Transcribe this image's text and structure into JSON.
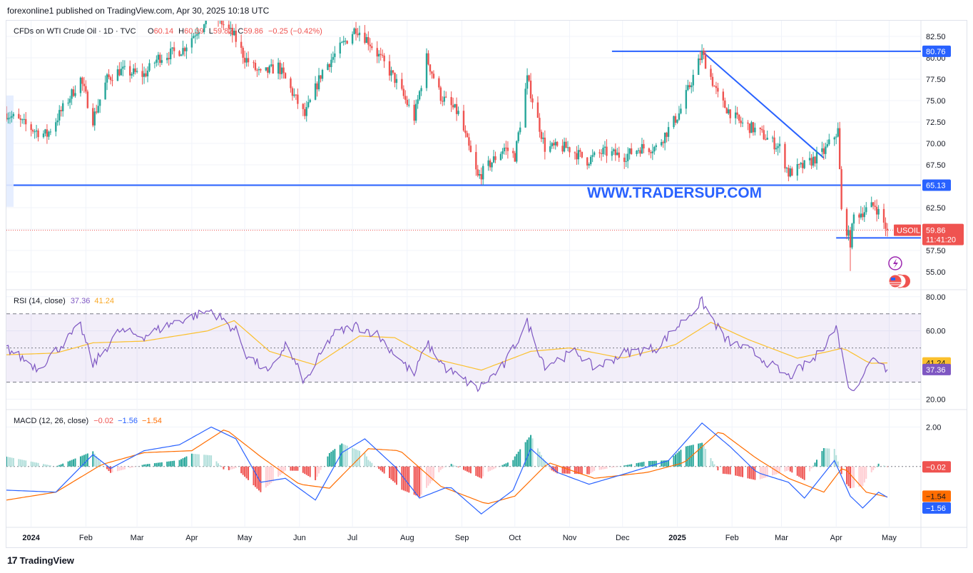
{
  "header": {
    "published": "forexonline1 published on TradingView.com, Apr 30, 2025 10:18 UTC"
  },
  "legend": {
    "symbol": "CFDs on WTI Crude Oil · 1D · TVC",
    "o_label": "O",
    "o_value": "60.14",
    "h_label": "H",
    "h_value": "60.39",
    "l_label": "L",
    "l_value": "59.82",
    "c_label": "C",
    "c_value": "59.86",
    "change": "−0.25 (−0.42%)"
  },
  "watermark": "WWW.TRADERSUP.COM",
  "footer": {
    "brand": "TradingView",
    "logo": "17"
  },
  "colors": {
    "up": "#26a69a",
    "down": "#ef5350",
    "level": "#2962ff",
    "rsi": "#7e57c2",
    "rsi_ma": "#fbc02d",
    "macd": "#2962ff",
    "signal": "#ff6d00"
  },
  "chart_data": [
    {
      "type": "candlestick",
      "title": "CFDs on WTI Crude Oil · 1D · TVC",
      "ylim": [
        53.5,
        83.5
      ],
      "yticks": [
        "82.50",
        "80.00",
        "77.50",
        "75.00",
        "72.50",
        "70.00",
        "67.50",
        "65.00",
        "62.50",
        "60.00",
        "57.50",
        "55.00"
      ],
      "xticks": [
        {
          "label": "2024",
          "date": "2024-01-01",
          "bold": true
        },
        {
          "label": "Feb",
          "date": "2024-02-01",
          "bold": false
        },
        {
          "label": "Mar",
          "date": "2024-03-01",
          "bold": false
        },
        {
          "label": "Apr",
          "date": "2024-04-01",
          "bold": false
        },
        {
          "label": "May",
          "date": "2024-05-01",
          "bold": false
        },
        {
          "label": "Jun",
          "date": "2024-06-01",
          "bold": false
        },
        {
          "label": "Jul",
          "date": "2024-07-01",
          "bold": false
        },
        {
          "label": "Aug",
          "date": "2024-08-01",
          "bold": false
        },
        {
          "label": "Sep",
          "date": "2024-09-01",
          "bold": false
        },
        {
          "label": "Oct",
          "date": "2024-10-01",
          "bold": false
        },
        {
          "label": "Nov",
          "date": "2024-11-01",
          "bold": false
        },
        {
          "label": "Dec",
          "date": "2024-12-01",
          "bold": false
        },
        {
          "label": "2025",
          "date": "2025-01-01",
          "bold": true
        },
        {
          "label": "Feb",
          "date": "2025-02-01",
          "bold": false
        },
        {
          "label": "Mar",
          "date": "2025-03-01",
          "bold": false
        },
        {
          "label": "Apr",
          "date": "2025-04-01",
          "bold": false
        },
        {
          "label": "May",
          "date": "2025-05-01",
          "bold": false
        }
      ],
      "price_path": [
        [
          "2023-12-18",
          73.5
        ],
        [
          "2024-01-03",
          71.5
        ],
        [
          "2024-01-10",
          71.0
        ],
        [
          "2024-01-29",
          77.5
        ],
        [
          "2024-02-05",
          72.8
        ],
        [
          "2024-02-13",
          77.5
        ],
        [
          "2024-02-20",
          78.5
        ],
        [
          "2024-03-05",
          78.0
        ],
        [
          "2024-03-13",
          80.0
        ],
        [
          "2024-03-27",
          81.0
        ],
        [
          "2024-04-12",
          85.5
        ],
        [
          "2024-04-25",
          82.5
        ],
        [
          "2024-05-01",
          80.0
        ],
        [
          "2024-05-10",
          78.0
        ],
        [
          "2024-05-20",
          79.0
        ],
        [
          "2024-06-04",
          73.2
        ],
        [
          "2024-06-14",
          78.5
        ],
        [
          "2024-07-03",
          83.5
        ],
        [
          "2024-07-10",
          82.0
        ],
        [
          "2024-07-25",
          77.5
        ],
        [
          "2024-08-05",
          73.0
        ],
        [
          "2024-08-12",
          80.0
        ],
        [
          "2024-08-20",
          75.5
        ],
        [
          "2024-08-30",
          73.5
        ],
        [
          "2024-09-10",
          66.0
        ],
        [
          "2024-09-25",
          69.5
        ],
        [
          "2024-10-01",
          68.5
        ],
        [
          "2024-10-08",
          77.5
        ],
        [
          "2024-10-18",
          69.5
        ],
        [
          "2024-10-31",
          69.5
        ],
        [
          "2024-11-11",
          68.0
        ],
        [
          "2024-11-20",
          69.0
        ],
        [
          "2024-12-02",
          68.5
        ],
        [
          "2024-12-11",
          69.5
        ],
        [
          "2024-12-20",
          69.5
        ],
        [
          "2025-01-02",
          73.5
        ],
        [
          "2025-01-15",
          80.5
        ],
        [
          "2025-01-25",
          75.0
        ],
        [
          "2025-02-05",
          72.5
        ],
        [
          "2025-02-15",
          71.5
        ],
        [
          "2025-02-28",
          69.5
        ],
        [
          "2025-03-05",
          66.5
        ],
        [
          "2025-03-15",
          67.5
        ],
        [
          "2025-03-25",
          69.0
        ],
        [
          "2025-04-02",
          71.5
        ],
        [
          "2025-04-04",
          62.0
        ],
        [
          "2025-04-09",
          58.5
        ],
        [
          "2025-04-11",
          61.5
        ],
        [
          "2025-04-23",
          62.8
        ],
        [
          "2025-04-30",
          59.86
        ]
      ],
      "levels": [
        {
          "label": "80.76",
          "value": 80.76,
          "from": "2024-11-25",
          "to": "2025-05-19"
        },
        {
          "label": "65.13",
          "value": 65.13,
          "from": "2023-12-18",
          "to": "2025-05-19"
        },
        {
          "label": "58.97",
          "value": 58.97,
          "from": "2025-04-01",
          "to": "2025-05-19"
        }
      ],
      "trendline": [
        [
          "2025-01-15",
          80.76
        ],
        [
          "2025-03-25",
          68.3
        ]
      ],
      "last": {
        "symbol": "USOIL",
        "price": "59.86",
        "countdown": "11:41:20",
        "value": 59.86
      },
      "lows": [
        {
          "date": "2025-04-09",
          "value": 55.1
        }
      ]
    },
    {
      "type": "line",
      "title": "RSI (14, close)",
      "values_text": [
        "37.36",
        "41.24"
      ],
      "ylim": [
        16,
        82
      ],
      "yticks": [
        "80.00",
        "60.00",
        "20.00"
      ],
      "bands": [
        30,
        50,
        70
      ],
      "series": [
        {
          "name": "RSI",
          "color": "#7e57c2",
          "value": 37.36,
          "path": [
            [
              "2023-12-18",
              50
            ],
            [
              "2024-01-05",
              38
            ],
            [
              "2024-01-29",
              63
            ],
            [
              "2024-02-05",
              40
            ],
            [
              "2024-02-20",
              60
            ],
            [
              "2024-03-05",
              57
            ],
            [
              "2024-03-22",
              65
            ],
            [
              "2024-04-12",
              72
            ],
            [
              "2024-04-26",
              60
            ],
            [
              "2024-05-02",
              46
            ],
            [
              "2024-05-15",
              35
            ],
            [
              "2024-05-24",
              52
            ],
            [
              "2024-06-04",
              30
            ],
            [
              "2024-06-20",
              58
            ],
            [
              "2024-07-03",
              63
            ],
            [
              "2024-07-15",
              58
            ],
            [
              "2024-08-05",
              34
            ],
            [
              "2024-08-12",
              53
            ],
            [
              "2024-08-23",
              38
            ],
            [
              "2024-09-10",
              26
            ],
            [
              "2024-09-25",
              40
            ],
            [
              "2024-10-08",
              65
            ],
            [
              "2024-10-18",
              40
            ],
            [
              "2024-11-05",
              48
            ],
            [
              "2024-11-15",
              38
            ],
            [
              "2024-12-02",
              47
            ],
            [
              "2024-12-20",
              50
            ],
            [
              "2025-01-15",
              77
            ],
            [
              "2025-01-28",
              55
            ],
            [
              "2025-02-12",
              48
            ],
            [
              "2025-03-05",
              33
            ],
            [
              "2025-03-20",
              44
            ],
            [
              "2025-04-01",
              62
            ],
            [
              "2025-04-09",
              24
            ],
            [
              "2025-04-23",
              45
            ],
            [
              "2025-04-30",
              37.36
            ]
          ]
        },
        {
          "name": "RSI-based MA",
          "color": "#fbc02d",
          "value": 41.24,
          "path": [
            [
              "2023-12-18",
              46
            ],
            [
              "2024-01-15",
              47
            ],
            [
              "2024-02-05",
              53
            ],
            [
              "2024-03-05",
              54
            ],
            [
              "2024-04-10",
              60
            ],
            [
              "2024-04-25",
              66
            ],
            [
              "2024-05-15",
              48
            ],
            [
              "2024-06-10",
              40
            ],
            [
              "2024-07-05",
              57
            ],
            [
              "2024-07-25",
              56
            ],
            [
              "2024-08-15",
              44
            ],
            [
              "2024-09-12",
              37
            ],
            [
              "2024-10-10",
              48
            ],
            [
              "2024-11-01",
              50
            ],
            [
              "2024-12-01",
              44
            ],
            [
              "2024-12-31",
              52
            ],
            [
              "2025-01-20",
              65
            ],
            [
              "2025-02-10",
              55
            ],
            [
              "2025-03-10",
              44
            ],
            [
              "2025-03-28",
              48
            ],
            [
              "2025-04-05",
              50
            ],
            [
              "2025-04-20",
              41
            ],
            [
              "2025-04-30",
              41.24
            ]
          ]
        }
      ]
    },
    {
      "type": "line+bar",
      "title": "MACD (12, 26, close)",
      "values_text": [
        "−0.02",
        "−1.56",
        "−1.54"
      ],
      "ylim": [
        -2.9,
        2.7
      ],
      "yticks": [
        "2.00"
      ],
      "series": [
        {
          "name": "Histogram",
          "value": -0.02
        },
        {
          "name": "MACD",
          "color": "#2962ff",
          "value": -1.56,
          "path": [
            [
              "2023-12-18",
              -1.2
            ],
            [
              "2024-01-15",
              -1.3
            ],
            [
              "2024-02-05",
              0.6
            ],
            [
              "2024-02-15",
              -0.1
            ],
            [
              "2024-03-05",
              0.8
            ],
            [
              "2024-03-25",
              1.1
            ],
            [
              "2024-04-12",
              2.0
            ],
            [
              "2024-04-26",
              1.4
            ],
            [
              "2024-05-10",
              -0.8
            ],
            [
              "2024-05-24",
              -0.6
            ],
            [
              "2024-06-10",
              -1.7
            ],
            [
              "2024-06-25",
              0.7
            ],
            [
              "2024-07-08",
              1.4
            ],
            [
              "2024-07-25",
              0.0
            ],
            [
              "2024-08-08",
              -1.6
            ],
            [
              "2024-08-25",
              -1.0
            ],
            [
              "2024-09-12",
              -2.4
            ],
            [
              "2024-09-30",
              -1.2
            ],
            [
              "2024-10-10",
              0.9
            ],
            [
              "2024-10-25",
              -0.3
            ],
            [
              "2024-11-12",
              -0.9
            ],
            [
              "2024-12-05",
              -0.3
            ],
            [
              "2024-12-27",
              0.3
            ],
            [
              "2025-01-15",
              2.2
            ],
            [
              "2025-01-31",
              1.0
            ],
            [
              "2025-02-15",
              -0.3
            ],
            [
              "2025-03-05",
              -0.8
            ],
            [
              "2025-03-14",
              -1.6
            ],
            [
              "2025-03-31",
              0.3
            ],
            [
              "2025-04-09",
              -1.5
            ],
            [
              "2025-04-16",
              -2.1
            ],
            [
              "2025-04-25",
              -1.3
            ],
            [
              "2025-04-30",
              -1.56
            ]
          ]
        },
        {
          "name": "Signal",
          "color": "#ff6d00",
          "value": -1.54,
          "path": [
            [
              "2023-12-18",
              -1.7
            ],
            [
              "2024-01-15",
              -1.3
            ],
            [
              "2024-02-10",
              0.1
            ],
            [
              "2024-03-05",
              0.7
            ],
            [
              "2024-04-01",
              0.8
            ],
            [
              "2024-04-20",
              1.9
            ],
            [
              "2024-05-10",
              0.5
            ],
            [
              "2024-06-01",
              -0.9
            ],
            [
              "2024-06-18",
              -1.1
            ],
            [
              "2024-07-10",
              0.9
            ],
            [
              "2024-07-28",
              0.8
            ],
            [
              "2024-08-20",
              -1.0
            ],
            [
              "2024-09-15",
              -1.9
            ],
            [
              "2024-10-01",
              -1.5
            ],
            [
              "2024-10-20",
              0.2
            ],
            [
              "2024-11-15",
              -0.6
            ],
            [
              "2024-12-15",
              -0.3
            ],
            [
              "2025-01-05",
              0.2
            ],
            [
              "2025-01-25",
              1.8
            ],
            [
              "2025-02-15",
              0.4
            ],
            [
              "2025-03-05",
              -0.6
            ],
            [
              "2025-03-25",
              -1.3
            ],
            [
              "2025-04-05",
              0.0
            ],
            [
              "2025-04-18",
              -1.3
            ],
            [
              "2025-04-30",
              -1.54
            ]
          ]
        }
      ]
    }
  ]
}
